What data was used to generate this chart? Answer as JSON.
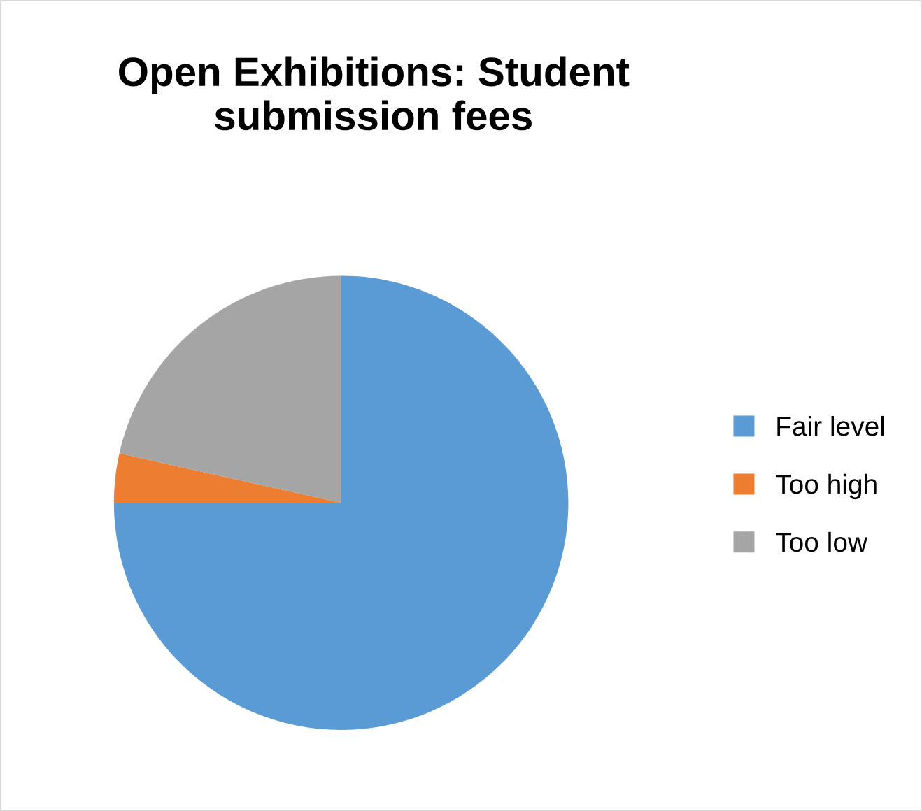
{
  "chart_data": {
    "type": "pie",
    "title": "Open Exhibitions: Student submission fees",
    "categories": [
      "Fair level",
      "Too high",
      "Too low"
    ],
    "values": [
      75,
      3.5,
      21.5
    ],
    "colors": [
      "#5b9bd5",
      "#ed7d31",
      "#a5a5a5"
    ],
    "legend": "right"
  }
}
